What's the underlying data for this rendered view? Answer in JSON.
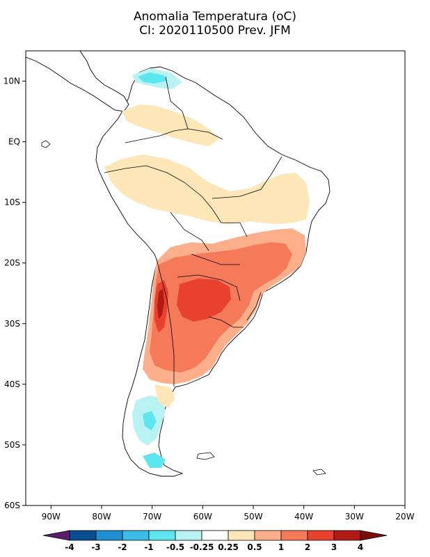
{
  "title": {
    "line1": "Anomalia Temperatura (oC)",
    "line2": "CI: 2020110500 Prev. JFM"
  },
  "map": {
    "lon_range": [
      -95,
      -20
    ],
    "lat_range": [
      -60,
      15
    ],
    "lat_ticks": [
      {
        "value": 10,
        "label": "10N"
      },
      {
        "value": 0,
        "label": "EQ"
      },
      {
        "value": -10,
        "label": "10S"
      },
      {
        "value": -20,
        "label": "20S"
      },
      {
        "value": -30,
        "label": "30S"
      },
      {
        "value": -40,
        "label": "40S"
      },
      {
        "value": -50,
        "label": "50S"
      },
      {
        "value": -60,
        "label": "60S"
      }
    ],
    "lon_ticks": [
      {
        "value": -90,
        "label": "90W"
      },
      {
        "value": -80,
        "label": "80W"
      },
      {
        "value": -70,
        "label": "70W"
      },
      {
        "value": -60,
        "label": "60W"
      },
      {
        "value": -50,
        "label": "50W"
      },
      {
        "value": -40,
        "label": "40W"
      },
      {
        "value": -30,
        "label": "30W"
      },
      {
        "value": -20,
        "label": "20W"
      }
    ],
    "colors": {
      "land": "#ffffff",
      "border": "#000000",
      "light_cyan": "#b8f2f2",
      "cyan": "#5de6f0",
      "tan": "#fde6b8",
      "salmon": "#fcaf8a",
      "orange_red": "#f47a5a",
      "red": "#e8412f",
      "dark_red": "#b21a14"
    }
  },
  "colorbar": {
    "colors": [
      "#5a1d6e",
      "#0a4e92",
      "#1f8fcf",
      "#3bbbe6",
      "#5de6f0",
      "#b8f2f2",
      "#ffffff",
      "#fde6b8",
      "#fcaf8a",
      "#f47a5a",
      "#e8412f",
      "#b21a14",
      "#7a0f0a"
    ],
    "labels": [
      "-4",
      "-3",
      "-2",
      "-1",
      "-0.5",
      "-0.25",
      "0.25",
      "0.5",
      "1",
      "2",
      "3",
      "4"
    ]
  }
}
